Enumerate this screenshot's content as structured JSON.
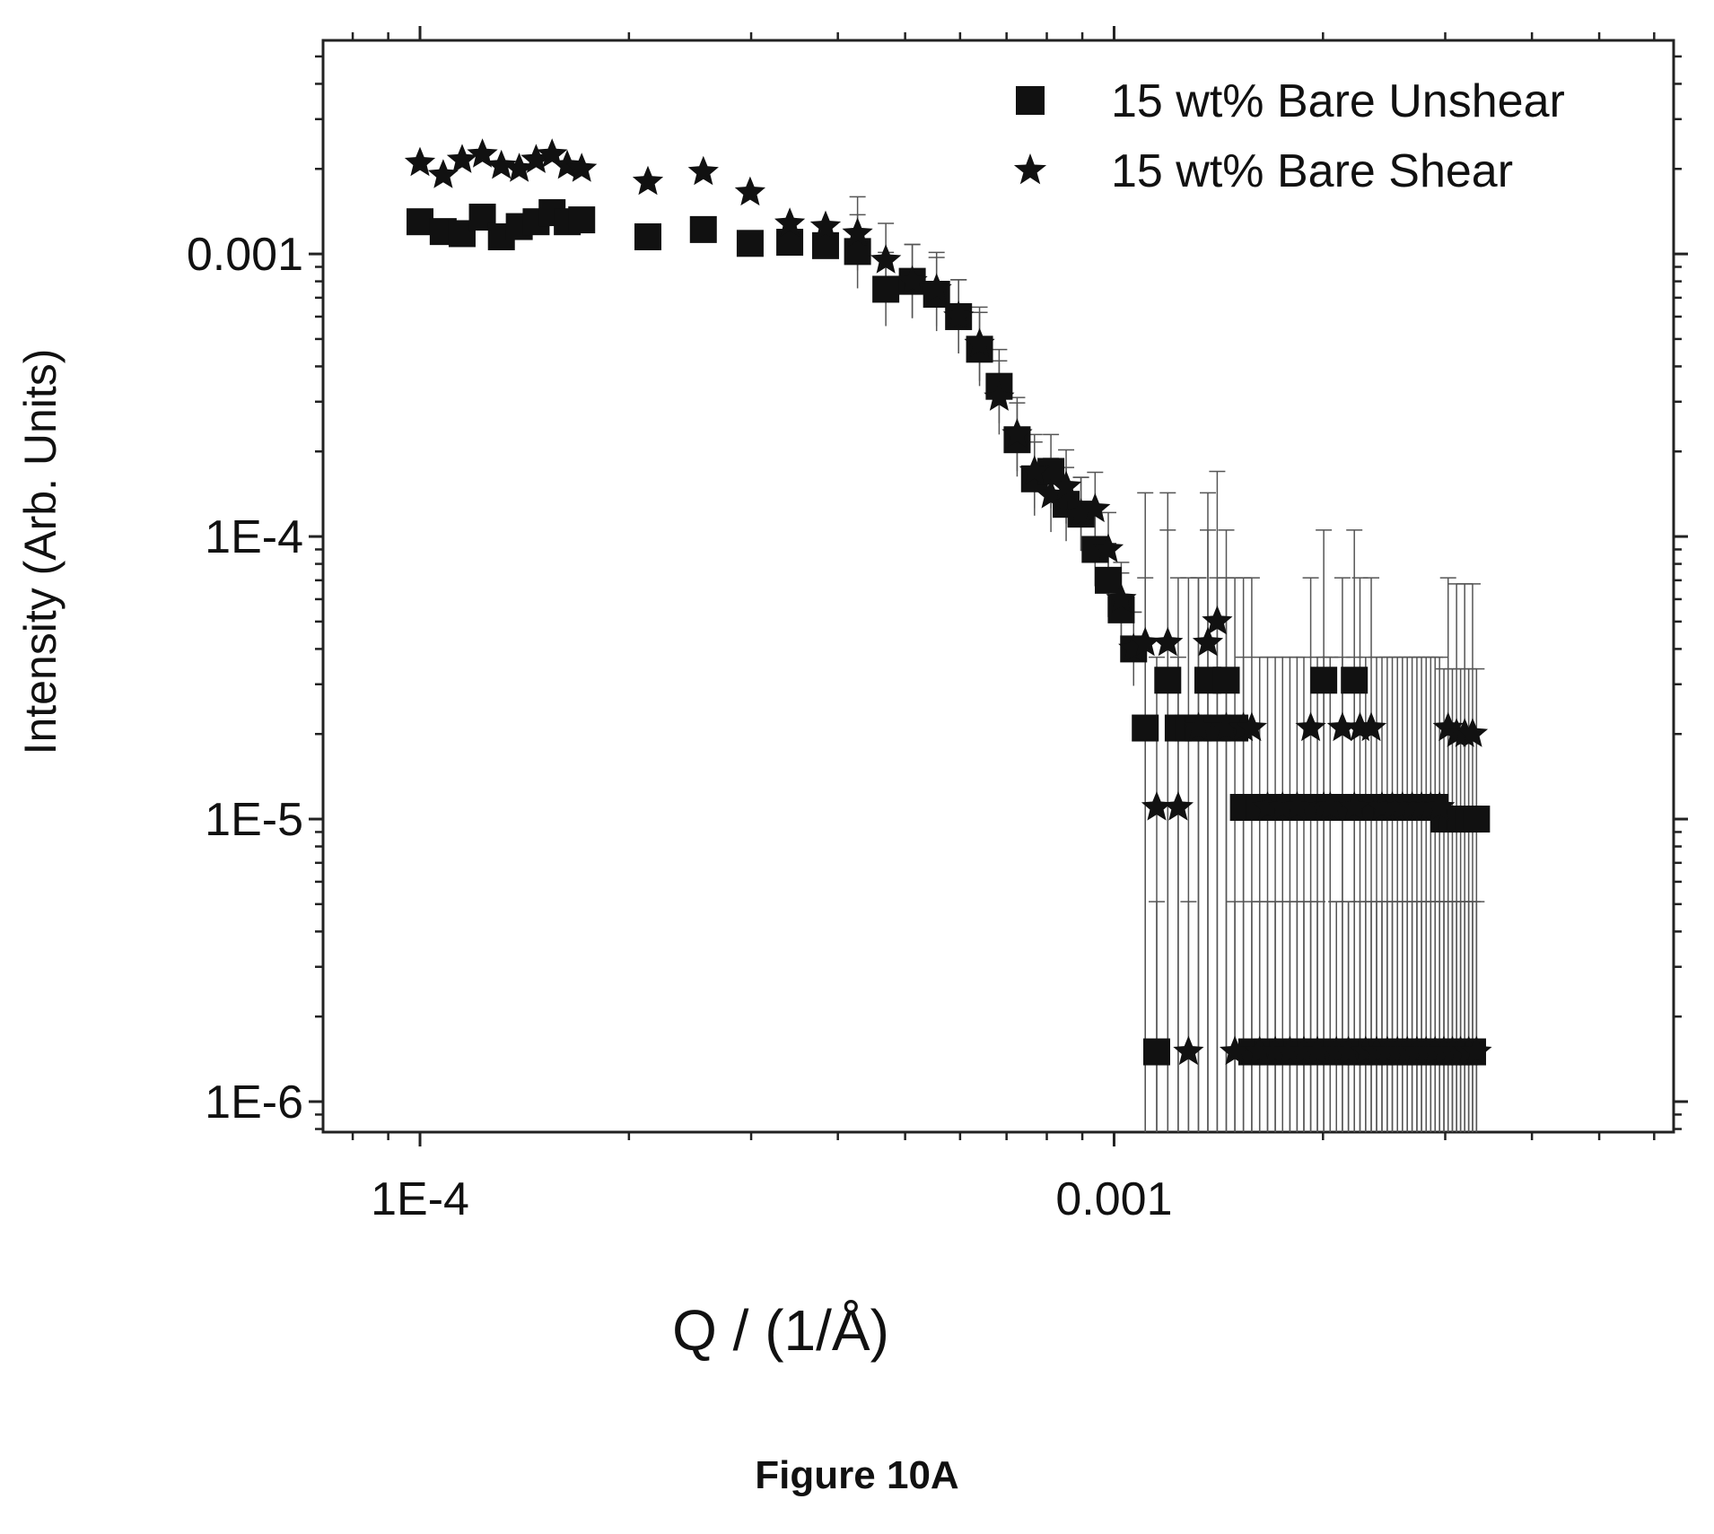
{
  "figure_caption": "Figure 10A",
  "chart_data": {
    "type": "scatter",
    "title": "",
    "xlabel": "Q / (1/Å)",
    "ylabel": "Intensity (Arb. Units)",
    "xscale": "log",
    "yscale": "log",
    "xlim": [
      7.25e-05,
      0.0064
    ],
    "ylim": [
      7.8e-07,
      0.0057
    ],
    "x_ticks": [
      {
        "value": 0.0001,
        "label": "1E-4"
      },
      {
        "value": 0.001,
        "label": "0.001"
      }
    ],
    "y_ticks": [
      {
        "value": 1e-06,
        "label": "1E-6"
      },
      {
        "value": 1e-05,
        "label": "1E-5"
      },
      {
        "value": 0.0001,
        "label": "1E-4"
      },
      {
        "value": 0.001,
        "label": "0.001"
      }
    ],
    "grid": false,
    "error_bars": true,
    "legend_position": "top-right",
    "series": [
      {
        "name": "15 wt% Bare Unshear",
        "marker": "square",
        "color": "#111111",
        "x": [
          0.0001,
          0.000108,
          0.000115,
          0.000123,
          0.000131,
          0.000139,
          0.000147,
          0.000155,
          0.000163,
          0.000171,
          0.000213,
          0.000256,
          0.000299,
          0.000341,
          0.000384,
          0.000427,
          0.000469,
          0.000512,
          0.000555,
          0.000597,
          0.00064,
          0.000683,
          0.000725,
          0.000768,
          0.000811,
          0.000853,
          0.000896,
          0.000939,
          0.000981,
          0.001024,
          0.001067,
          0.001109,
          0.001152,
          0.001195,
          0.001237,
          0.00128,
          0.001323,
          0.001365,
          0.001408,
          0.001451,
          0.001493,
          0.001536,
          0.001579,
          0.001621,
          0.001664,
          0.001707,
          0.001749,
          0.001792,
          0.001835,
          0.001877,
          0.00192,
          0.001963,
          0.002005,
          0.002048,
          0.002091,
          0.002133,
          0.002176,
          0.002219,
          0.002261,
          0.002304,
          0.002347,
          0.002389,
          0.002432,
          0.002475,
          0.002517,
          0.00256,
          0.002603,
          0.002645,
          0.002688,
          0.002731,
          0.002773,
          0.002816,
          0.002859,
          0.002901,
          0.002944,
          0.002987,
          0.003029,
          0.003072,
          0.003115,
          0.003157,
          0.0032,
          0.003243,
          0.003285,
          0.003328
        ],
        "y": [
          0.0013,
          0.0012,
          0.00118,
          0.00135,
          0.00115,
          0.00125,
          0.0013,
          0.0014,
          0.0013,
          0.00132,
          0.00115,
          0.00122,
          0.00109,
          0.0011,
          0.00107,
          0.00102,
          0.00075,
          0.0008,
          0.00072,
          0.0006,
          0.00046,
          0.00034,
          0.00022,
          0.00016,
          0.00017,
          0.00013,
          0.00012,
          9e-05,
          7e-05,
          5.5e-05,
          4e-05,
          2.1e-05,
          1.5e-06,
          3.1e-05,
          2.1e-05,
          2.1e-05,
          2.1e-05,
          3.1e-05,
          2.1e-05,
          3.1e-05,
          2.1e-05,
          1.1e-05,
          1.5e-06,
          1.1e-05,
          1.5e-06,
          1.1e-05,
          1.5e-06,
          1.1e-05,
          1.5e-06,
          1.1e-05,
          1.5e-06,
          1.1e-05,
          3.1e-05,
          1.1e-05,
          1.5e-06,
          1.1e-05,
          1.5e-06,
          3.1e-05,
          1.5e-06,
          1.1e-05,
          1.5e-06,
          1.1e-05,
          1.5e-06,
          1.1e-05,
          1.5e-06,
          1.1e-05,
          1.5e-06,
          1.1e-05,
          1.5e-06,
          1.1e-05,
          1.5e-06,
          1.1e-05,
          1.5e-06,
          1.1e-05,
          1.5e-06,
          1e-05,
          1.5e-06,
          1e-05,
          1.5e-06,
          1e-05,
          1.5e-06,
          1e-05,
          1.5e-06,
          1e-05
        ]
      },
      {
        "name": "15 wt% Bare Shear",
        "marker": "star",
        "color": "#111111",
        "x": [
          0.0001,
          0.000108,
          0.000115,
          0.000123,
          0.000131,
          0.000139,
          0.000147,
          0.000155,
          0.000163,
          0.000171,
          0.000213,
          0.000256,
          0.000299,
          0.000341,
          0.000384,
          0.000427,
          0.000469,
          0.000512,
          0.000555,
          0.000597,
          0.00064,
          0.000683,
          0.000725,
          0.000768,
          0.000811,
          0.000853,
          0.000896,
          0.000939,
          0.000981,
          0.001024,
          0.001067,
          0.001109,
          0.001152,
          0.001195,
          0.001237,
          0.00128,
          0.001323,
          0.001365,
          0.001408,
          0.001451,
          0.001493,
          0.001536,
          0.001579,
          0.001621,
          0.001664,
          0.001707,
          0.001749,
          0.001792,
          0.001835,
          0.001877,
          0.00192,
          0.001963,
          0.002005,
          0.002048,
          0.002091,
          0.002133,
          0.002176,
          0.002219,
          0.002261,
          0.002304,
          0.002347,
          0.002389,
          0.002432,
          0.002475,
          0.002517,
          0.00256,
          0.002603,
          0.002645,
          0.002688,
          0.002731,
          0.002773,
          0.002816,
          0.002859,
          0.002901,
          0.002944,
          0.002987,
          0.003029,
          0.003072,
          0.003115,
          0.003157,
          0.0032,
          0.003243,
          0.003285,
          0.003328
        ],
        "y": [
          0.0021,
          0.0019,
          0.00215,
          0.00225,
          0.00205,
          0.002,
          0.00215,
          0.00225,
          0.00205,
          0.002,
          0.0018,
          0.00195,
          0.00165,
          0.00128,
          0.00125,
          0.00118,
          0.00095,
          0.0008,
          0.00075,
          0.0006,
          0.00048,
          0.00031,
          0.00023,
          0.00017,
          0.00014,
          0.00015,
          0.00012,
          0.000125,
          9e-05,
          6e-05,
          4e-05,
          4.2e-05,
          1.1e-05,
          4.2e-05,
          1.1e-05,
          1.5e-06,
          2.1e-05,
          4.2e-05,
          5e-05,
          2.1e-05,
          1.5e-06,
          2.1e-05,
          2.1e-05,
          1.5e-06,
          1.1e-05,
          1.5e-06,
          1.1e-05,
          1.5e-06,
          1.1e-05,
          1.5e-06,
          2.1e-05,
          1.5e-06,
          1.1e-05,
          1.1e-05,
          1.5e-06,
          2.1e-05,
          1.5e-06,
          1.1e-05,
          2.1e-05,
          1.5e-06,
          2.1e-05,
          1.5e-06,
          1.1e-05,
          1.5e-06,
          1.1e-05,
          1.5e-06,
          1.1e-05,
          1.5e-06,
          1.1e-05,
          1.5e-06,
          1.1e-05,
          1.5e-06,
          1.1e-05,
          1.5e-06,
          1.1e-05,
          1.5e-06,
          2.1e-05,
          1.5e-06,
          2e-05,
          1.5e-06,
          2e-05,
          1.5e-06,
          2e-05,
          1.5e-06
        ]
      }
    ]
  }
}
